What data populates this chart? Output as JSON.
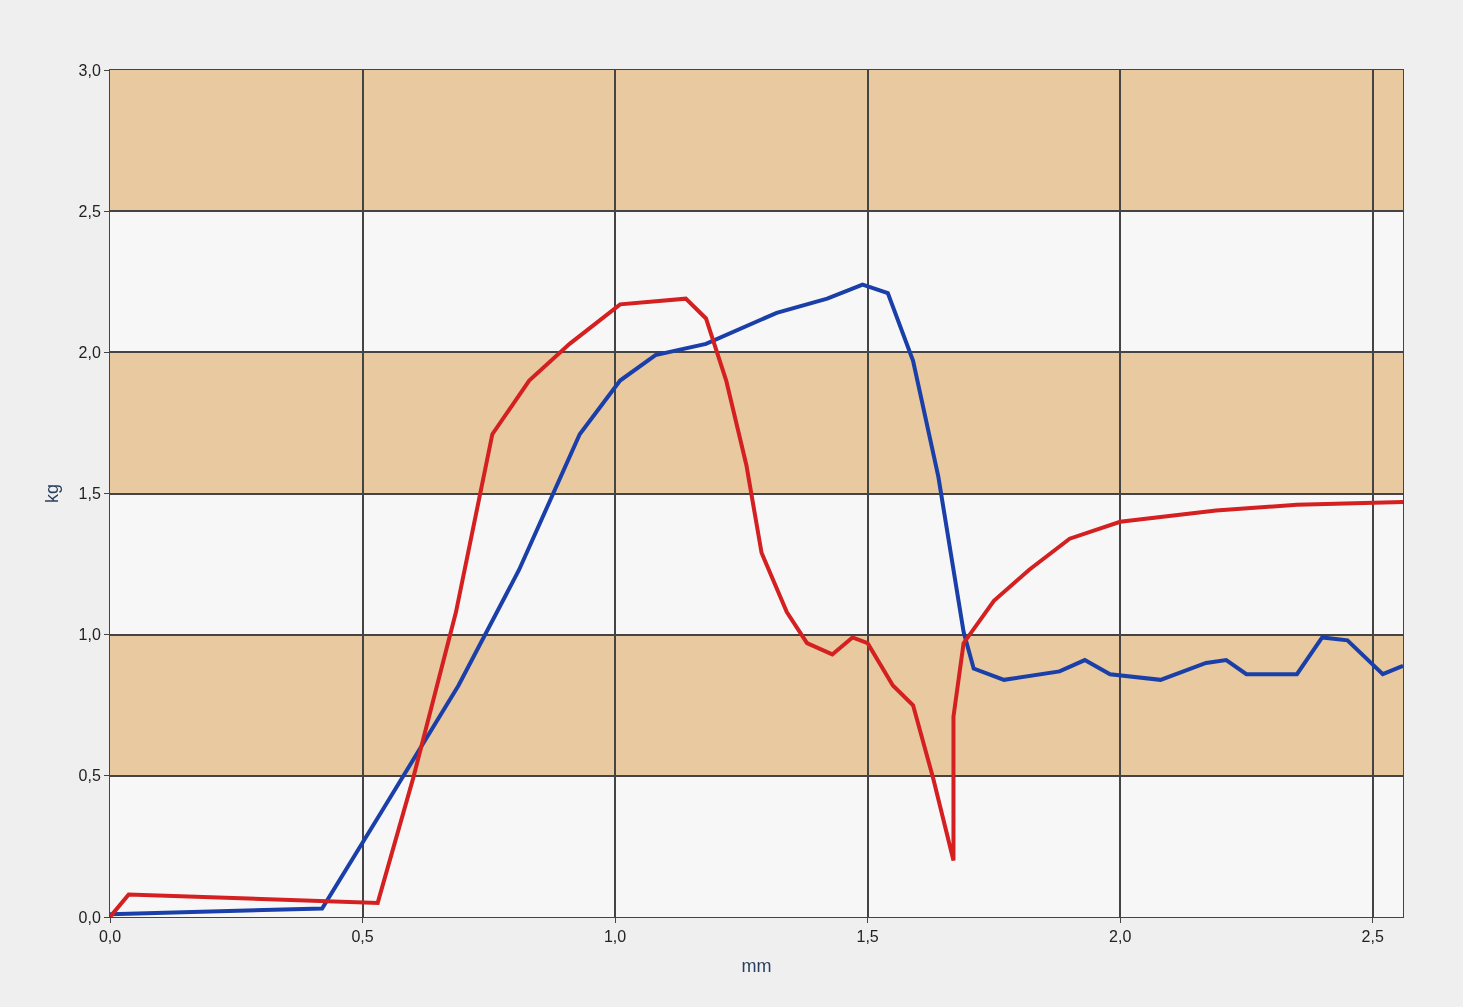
{
  "chart_data": {
    "type": "line",
    "xlabel": "mm",
    "ylabel": "kg",
    "xlim": [
      0,
      2.56
    ],
    "ylim": [
      0,
      3.0
    ],
    "xticks": [
      {
        "value": 0,
        "label": "0,0"
      },
      {
        "value": 0.5,
        "label": "0,5"
      },
      {
        "value": 1.0,
        "label": "1,0"
      },
      {
        "value": 1.5,
        "label": "1,5"
      },
      {
        "value": 2.0,
        "label": "2,0"
      },
      {
        "value": 2.5,
        "label": "2,5"
      }
    ],
    "yticks": [
      {
        "value": 0,
        "label": "0,0"
      },
      {
        "value": 0.5,
        "label": "0,5"
      },
      {
        "value": 1.0,
        "label": "1,0"
      },
      {
        "value": 1.5,
        "label": "1,5"
      },
      {
        "value": 2.0,
        "label": "2,0"
      },
      {
        "value": 2.5,
        "label": "2,5"
      },
      {
        "value": 3.0,
        "label": "3,0"
      }
    ],
    "grid": true,
    "bands": [
      {
        "axis": "y",
        "from": 0.5,
        "to": 1.0,
        "color": "#e8c9a0"
      },
      {
        "axis": "y",
        "from": 1.5,
        "to": 2.0,
        "color": "#e8c9a0"
      },
      {
        "axis": "y",
        "from": 2.5,
        "to": 3.0,
        "color": "#e8c9a0"
      }
    ],
    "series": [
      {
        "color": "#1a3fa8",
        "x": [
          0,
          0.42,
          0.54,
          0.69,
          0.81,
          0.93,
          1.01,
          1.08,
          1.18,
          1.32,
          1.42,
          1.49,
          1.54,
          1.59,
          1.64,
          1.69,
          1.71,
          1.77,
          1.88,
          1.93,
          1.98,
          2.08,
          2.17,
          2.21,
          2.25,
          2.35,
          2.4,
          2.45,
          2.52,
          2.56
        ],
        "values": [
          0.01,
          0.03,
          0.38,
          0.82,
          1.23,
          1.71,
          1.9,
          1.99,
          2.03,
          2.14,
          2.19,
          2.24,
          2.21,
          1.97,
          1.56,
          1.01,
          0.88,
          0.84,
          0.87,
          0.91,
          0.86,
          0.84,
          0.9,
          0.91,
          0.86,
          0.86,
          0.99,
          0.98,
          0.86,
          0.89
        ]
      },
      {
        "color": "#d42020",
        "x": [
          0,
          0.037,
          0.53,
          0.6,
          0.685,
          0.757,
          0.83,
          0.91,
          1.01,
          1.14,
          1.18,
          1.22,
          1.26,
          1.29,
          1.34,
          1.38,
          1.43,
          1.47,
          1.5,
          1.55,
          1.59,
          1.63,
          1.67,
          1.67,
          1.69,
          1.75,
          1.82,
          1.9,
          2.0,
          2.19,
          2.35,
          2.56
        ],
        "values": [
          0,
          0.08,
          0.05,
          0.49,
          1.08,
          1.71,
          1.9,
          2.03,
          2.17,
          2.19,
          2.12,
          1.9,
          1.6,
          1.29,
          1.08,
          0.97,
          0.93,
          0.99,
          0.97,
          0.82,
          0.75,
          0.49,
          0.2,
          0.71,
          0.97,
          1.12,
          1.23,
          1.34,
          1.4,
          1.44,
          1.46,
          1.47
        ]
      }
    ]
  }
}
